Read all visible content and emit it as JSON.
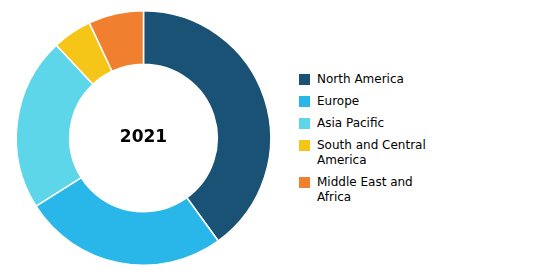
{
  "chart_data": {
    "type": "donut",
    "categories": [
      "North America",
      "Europe",
      "Asia Pacific",
      "South and Central\nAmerica",
      "Middle East and\nAfrica"
    ],
    "values": [
      40,
      26,
      22,
      5,
      7
    ],
    "colors": [
      "#1a5276",
      "#29b6e8",
      "#5cd6e8",
      "#f5c518",
      "#f08030"
    ],
    "annotations": [
      "2021"
    ],
    "legend": "right"
  }
}
